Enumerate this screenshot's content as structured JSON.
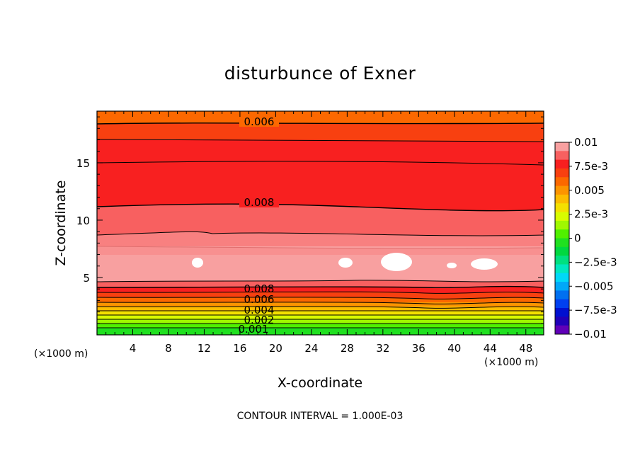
{
  "chart_data": {
    "type": "contour",
    "title": "disturbunce of Exner",
    "xlabel": "X-coordinate",
    "ylabel": "Z-coordinate",
    "x_unit_note": "(×1000 m)",
    "x_unit_note_right": "(×1000 m)",
    "x_ticks": [
      "4",
      "8",
      "12",
      "16",
      "20",
      "24",
      "28",
      "32",
      "36",
      "40",
      "44",
      "48"
    ],
    "y_ticks": [
      "5",
      "10",
      "15"
    ],
    "xlim": [
      0,
      50
    ],
    "ylim": [
      0,
      19.5
    ],
    "contour_interval_text": "CONTOUR INTERVAL = 1.000E-03",
    "contour_labels": [
      "0.006",
      "0.008",
      "0.008",
      "0.006",
      "0.004",
      "0.002",
      "0.001"
    ],
    "colorbar": {
      "ticks": [
        "0.01",
        "7.5e-3",
        "0.005",
        "2.5e-3",
        "0",
        "−2.5e-3",
        "−0.005",
        "−7.5e-3",
        "−0.01"
      ],
      "colors": [
        "#f8a0a0",
        "#f86060",
        "#f82020",
        "#f84010",
        "#fc6800",
        "#fc9400",
        "#fcbc00",
        "#f4e000",
        "#d8fc00",
        "#a0f800",
        "#50f000",
        "#20e020",
        "#00d840",
        "#00e080",
        "#00e8c0",
        "#00d8f8",
        "#00a8f8",
        "#0070f0",
        "#0040f0",
        "#0010d0",
        "#2000b8",
        "#6000b8"
      ]
    },
    "bands": [
      {
        "level": 0.001,
        "color": "#20e020"
      },
      {
        "level": 0.002,
        "color": "#50f000"
      },
      {
        "level": 0.003,
        "color": "#a0f800"
      },
      {
        "level": 0.004,
        "color": "#d8fc00"
      },
      {
        "level": 0.005,
        "color": "#f4e000"
      },
      {
        "level": 0.006,
        "color": "#fcbc00"
      },
      {
        "level": 0.0065,
        "color": "#fc9400"
      },
      {
        "level": 0.007,
        "color": "#fc6800"
      },
      {
        "level": 0.0075,
        "color": "#f84010"
      },
      {
        "level": 0.008,
        "color": "#f82020"
      },
      {
        "level": 0.0085,
        "color": "#f86060"
      },
      {
        "level": 0.009,
        "color": "#f88080"
      },
      {
        "level": 0.0095,
        "color": "#f8a0a0"
      }
    ]
  }
}
